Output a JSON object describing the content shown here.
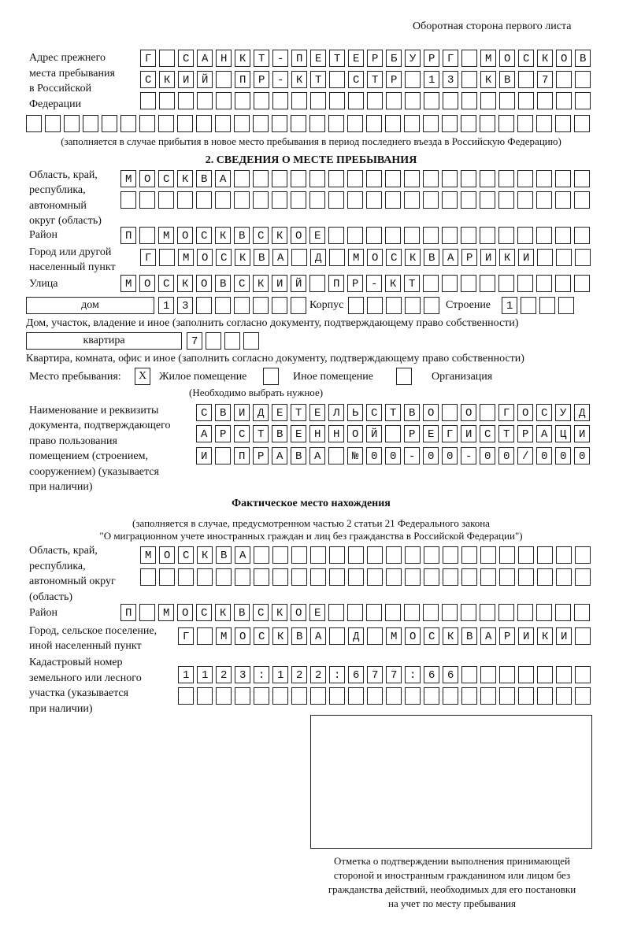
{
  "header": "Оборотная сторона первого листа",
  "prev_address": {
    "label": [
      "Адрес прежнего",
      "места пребывания",
      "в Российской",
      "Федерации"
    ],
    "rows": [
      "Г САНКТ-ПЕТЕРБУРГ МОСКОВ",
      "СКИЙ ПР-КТ СТР 13 КВ 7  ",
      "                        ",
      "                              "
    ],
    "note": "(заполняется в случае прибытия в новое место пребывания в период последнего въезда в Российскую Федерацию)"
  },
  "section2": {
    "title": "2. СВЕДЕНИЯ О МЕСТЕ ПРЕБЫВАНИЯ",
    "region_label": [
      "Область, край,",
      "республика,",
      "автономный",
      "округ (область)"
    ],
    "region_rows": [
      "МОСКВА                   ",
      "                         "
    ],
    "district_label": "Район",
    "district_row": "П МОСКВСКОЕ              ",
    "city_label": [
      "Город или другой",
      "населенный пункт"
    ],
    "city_row": "Г МОСКВА Д МОСКВАРИКИ   ",
    "street_label": "Улица",
    "street_row": "МОСКОВСКИЙ ПР-КТ         ",
    "house_type": "дом",
    "house_row": "13      ",
    "korpus_label": "Корпус",
    "korpus_row": "     ",
    "building_label": "Строение",
    "building_row": "1   ",
    "house_note": "Дом, участок, владение и иное (заполнить согласно документу, подтверждающему право собственности)",
    "apt_type": "квартира",
    "apt_row": "7   ",
    "apt_note": "Квартира, комната, офис и иное (заполнить согласно документу, подтверждающему право собственности)",
    "stay_label": "Место пребывания:",
    "stay_options": [
      {
        "label": "Жилое помещение",
        "mark": "Х"
      },
      {
        "label": "Иное помещение",
        "mark": ""
      },
      {
        "label": "Организация",
        "mark": ""
      }
    ],
    "stay_note": "(Необходимо выбрать нужное)",
    "doc_label": [
      "Наименование и реквизиты",
      "документа, подтверждающего",
      "право пользования",
      "помещением (строением,",
      "сооружением) (указывается",
      "при наличии)"
    ],
    "doc_rows": [
      "СВИДЕТЕЛЬСТВО О ГОСУД",
      "АРСТВЕННОЙ РЕГИСТРАЦИ",
      "И ПРАВА №00-00-00/000"
    ]
  },
  "actual": {
    "title": "Фактическое место нахождения",
    "note": [
      "(заполняется в случае, предусмотренном частью 2 статьи 21 Федерального закона",
      "\"О миграционном учете иностранных граждан и лиц без гражданства в Российской Федерации\")"
    ],
    "region_label": [
      "Область, край,",
      "республика,",
      "автономный округ",
      "(область)"
    ],
    "region_rows": [
      "МОСКВА                  ",
      "                        "
    ],
    "district_label": "Район",
    "district_row": "П МОСКВСКОЕ              ",
    "city_label": [
      "Город, сельское поселение,",
      "иной населенный пункт"
    ],
    "city_row": "Г МОСКВА Д МОСКВАРИКИ ",
    "cadastral_label": [
      "Кадастровый номер",
      "земельного или лесного",
      "участка (указывается",
      "при наличии)"
    ],
    "cadastral_rows": [
      "1123:122:677:66       ",
      "                      "
    ]
  },
  "stamp_caption": [
    "Отметка о подтверждении выполнения принимающей",
    "стороной и иностранным гражданином или лицом без",
    "гражданства действий, необходимых для его постановки",
    "на учет по месту пребывания"
  ]
}
